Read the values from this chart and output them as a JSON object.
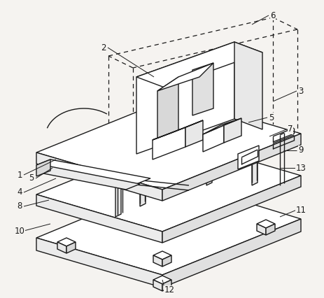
{
  "bg": "#f5f3f0",
  "lc": "#1a1a1a",
  "lw": 1.0,
  "dlw": 0.9,
  "figsize": [
    4.64,
    4.26
  ],
  "dpi": 100
}
